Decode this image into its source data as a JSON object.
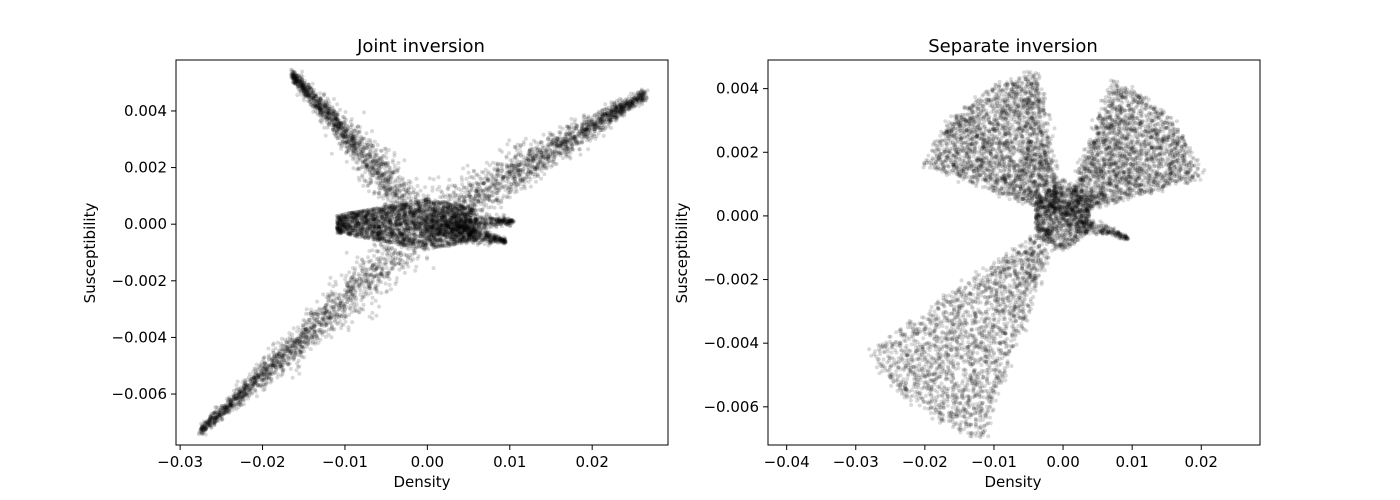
{
  "chart_data": [
    {
      "type": "scatter",
      "title": "Joint inversion",
      "xlabel": "Density",
      "ylabel": "Susceptibility",
      "xlim": [
        -0.0305,
        0.0292
      ],
      "ylim": [
        -0.0078,
        0.0058
      ],
      "xticks": [
        -0.03,
        -0.02,
        -0.01,
        0.0,
        0.01,
        0.02
      ],
      "xtick_labels": [
        "−0.03",
        "−0.02",
        "−0.01",
        "0.00",
        "0.01",
        "0.02"
      ],
      "yticks": [
        -0.006,
        -0.004,
        -0.002,
        0.0,
        0.002,
        0.004
      ],
      "ytick_labels": [
        "−0.006",
        "−0.004",
        "−0.002",
        "0.000",
        "0.002",
        "0.004"
      ],
      "grid": false,
      "marker_color": "#000000",
      "marker_alpha": 0.15,
      "series": [
        {
          "description": "joint-inversion-model-cells",
          "arms": [
            {
              "from": [
                0.0,
                0.0
              ],
              "to": [
                -0.0165,
                0.0053
              ],
              "spread": 0.0003,
              "n": 1400
            },
            {
              "from": [
                0.0,
                0.0
              ],
              "to": [
                -0.0275,
                -0.0073
              ],
              "spread": 0.0003,
              "n": 1700
            },
            {
              "from": [
                0.0,
                0.0
              ],
              "to": [
                0.0265,
                0.0046
              ],
              "spread": 0.0003,
              "n": 1700
            },
            {
              "from": [
                0.0,
                0.0
              ],
              "to": [
                0.0095,
                -0.0006
              ],
              "spread": 0.00015,
              "n": 500
            },
            {
              "from": [
                0.0,
                0.0
              ],
              "to": [
                0.0105,
                0.0001
              ],
              "spread": 0.00015,
              "n": 400
            }
          ],
          "core": {
            "x_range": [
              -0.011,
              0.006
            ],
            "y_range": [
              -0.0009,
              0.0009
            ],
            "n": 2500
          }
        }
      ]
    },
    {
      "type": "scatter",
      "title": "Separate inversion",
      "xlabel": "Density",
      "ylabel": "Susceptibility",
      "xlim": [
        -0.0427,
        0.0285
      ],
      "ylim": [
        -0.0072,
        0.0049
      ],
      "xticks": [
        -0.04,
        -0.03,
        -0.02,
        -0.01,
        0.0,
        0.01,
        0.02
      ],
      "xtick_labels": [
        "−0.04",
        "−0.03",
        "−0.02",
        "−0.01",
        "0.00",
        "0.01",
        "0.02"
      ],
      "yticks": [
        -0.006,
        -0.004,
        -0.002,
        0.0,
        0.002,
        0.004
      ],
      "ytick_labels": [
        "−0.006",
        "−0.004",
        "−0.002",
        "0.000",
        "0.002",
        "0.004"
      ],
      "grid": false,
      "marker_color": "#000000",
      "marker_alpha": 0.15,
      "series": [
        {
          "description": "separate-inversion-model-cells",
          "fans": [
            {
              "angle_from": 100,
              "angle_to": 160,
              "r_max": 0.0046,
              "n": 2600
            },
            {
              "angle_from": 15,
              "angle_to": 70,
              "r_max": 0.0045,
              "n": 2300
            },
            {
              "angle_from": 215,
              "angle_to": 250,
              "r_max": 0.0075,
              "n": 2200
            }
          ],
          "arm": {
            "from": [
              0.0,
              0.0
            ],
            "to": [
              0.0095,
              -0.0007
            ],
            "spread": 0.0001,
            "n": 250
          },
          "core": {
            "x_range": [
              -0.004,
              0.004
            ],
            "y_range": [
              -0.0012,
              0.0012
            ],
            "n": 900
          }
        }
      ]
    }
  ]
}
